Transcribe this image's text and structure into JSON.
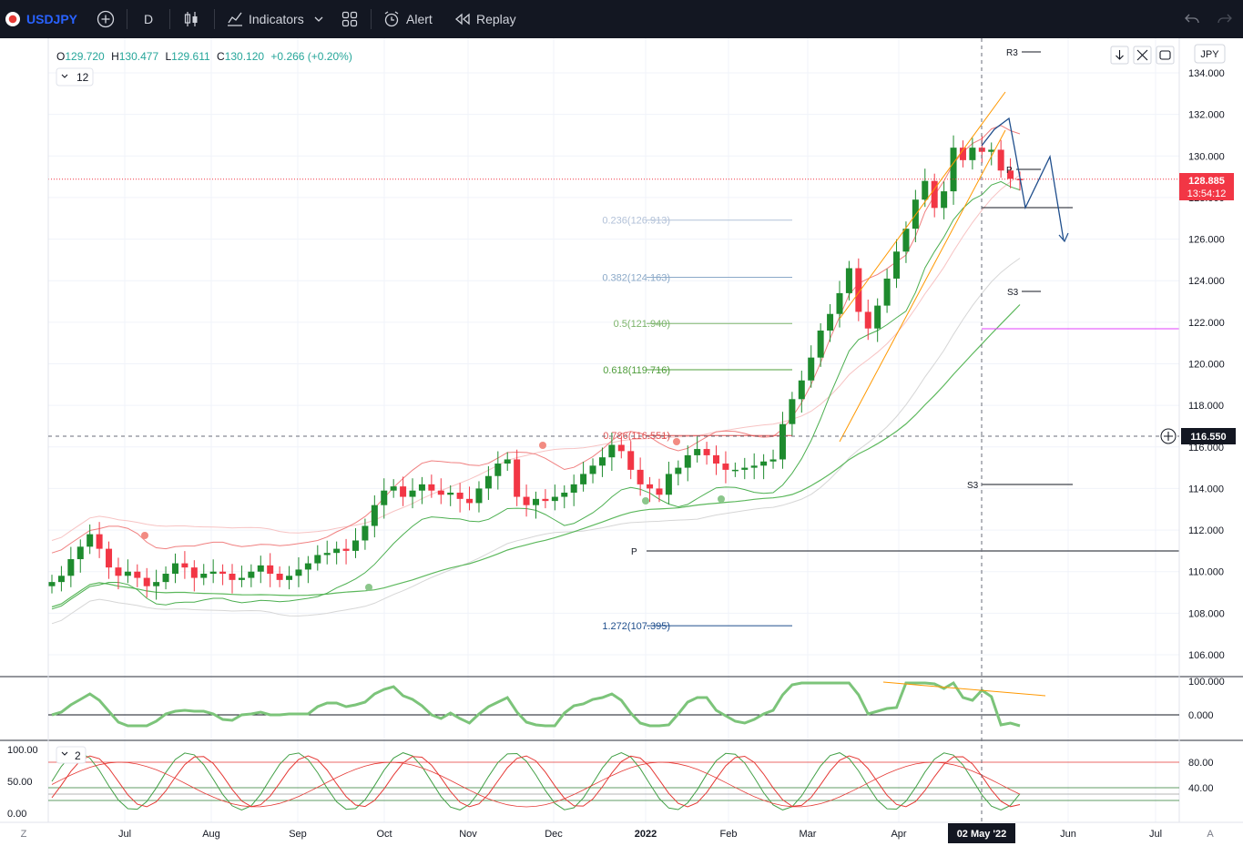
{
  "toolbar": {
    "symbol": "USDJPY",
    "interval": "D",
    "indicators_label": "Indicators",
    "alert_label": "Alert",
    "replay_label": "Replay"
  },
  "legend": {
    "open": "O129.720",
    "high": "H130.477",
    "low": "L129.611",
    "close": "C130.120",
    "change": "+0.266 (+0.20%)",
    "indicator_count": "12",
    "sub_indicator_count": "2"
  },
  "currency": "JPY",
  "price_badges": {
    "last_price": "128.885",
    "countdown": "13:54:12",
    "crosshair_price": "116.550"
  },
  "crosshair_date": "02 May '22",
  "colors": {
    "up": "#26a69a",
    "bull_candle": "#1e8b2e",
    "bear_candle": "#f23645",
    "accent": "#2962ff",
    "toolbar_bg": "#131722"
  },
  "chart_data": {
    "type": "candlestick",
    "price_axis": {
      "min": 105,
      "max": 135,
      "ticks": [
        "134.000",
        "132.000",
        "130.000",
        "128.000",
        "126.000",
        "124.000",
        "122.000",
        "120.000",
        "118.000",
        "116.000",
        "114.000",
        "112.000",
        "110.000",
        "108.000",
        "106.000"
      ]
    },
    "time_axis": [
      "Jul",
      "Aug",
      "Sep",
      "Oct",
      "Nov",
      "Dec",
      "2022",
      "Feb",
      "Mar",
      "Apr",
      "Jun",
      "Jul"
    ],
    "fib_levels": [
      {
        "label": "0.236(126.913)",
        "value": 126.913,
        "color": "#b2c1d8"
      },
      {
        "label": "0.382(124.163)",
        "value": 124.163,
        "color": "#8ba9c8"
      },
      {
        "label": "0.5(121.940)",
        "value": 121.94,
        "color": "#7cb46a"
      },
      {
        "label": "0.618(119.716)",
        "value": 119.716,
        "color": "#4e9c3a"
      },
      {
        "label": "0.786(116.551)",
        "value": 116.551,
        "color": "#e05252"
      },
      {
        "label": "1.272(107.395)",
        "value": 107.395,
        "color": "#1f4e8c"
      }
    ],
    "pivot_labels": [
      "R3",
      "P",
      "S3",
      "S3",
      "P"
    ],
    "close_series": [
      109.5,
      109.8,
      110.6,
      111.2,
      111.8,
      111.1,
      110.2,
      109.8,
      110.0,
      109.7,
      109.3,
      109.5,
      109.9,
      110.4,
      110.2,
      109.7,
      109.9,
      110.0,
      109.9,
      109.6,
      109.7,
      110.0,
      110.3,
      109.9,
      109.6,
      109.8,
      110.1,
      110.4,
      110.8,
      110.9,
      111.1,
      111.0,
      111.5,
      112.2,
      113.2,
      113.9,
      114.1,
      113.6,
      113.9,
      114.2,
      113.9,
      113.7,
      113.8,
      113.5,
      113.3,
      114.0,
      114.6,
      115.2,
      115.4,
      113.6,
      113.2,
      113.5,
      113.4,
      113.6,
      113.8,
      114.2,
      114.7,
      115.1,
      115.5,
      116.1,
      115.8,
      114.9,
      114.2,
      114.0,
      113.7,
      114.7,
      115.0,
      115.6,
      115.9,
      115.6,
      115.2,
      114.9,
      114.9,
      115.0,
      115.1,
      115.3,
      115.4,
      117.1,
      118.3,
      119.2,
      120.3,
      121.6,
      122.4,
      123.4,
      124.6,
      122.5,
      121.7,
      122.8,
      124.1,
      125.4,
      126.5,
      127.9,
      128.8,
      127.5,
      128.3,
      130.4,
      129.8,
      130.4,
      130.2,
      130.3,
      129.3,
      128.9,
      128.885
    ],
    "rsi_axis": [
      "100.000",
      "0.000"
    ],
    "stoch_axis": {
      "left": [
        "100.00",
        "50.00",
        "0.00"
      ],
      "right": [
        "80.00",
        "40.00"
      ]
    }
  }
}
